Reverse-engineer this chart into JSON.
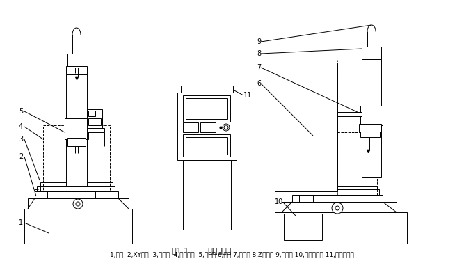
{
  "fig_label": "图1.1",
  "fig_title": "机床外形图",
  "caption": "1,床身  2,XY拖板  3,排水盘  4,工作台面  5,排水罩 6,立柱 7,主轴夹 8,Z轴滑块 9,数控夹 10,工作液系统 11,数控电源箱",
  "bg_color": "#ffffff",
  "line_color": "#000000",
  "font_size_caption": 6.5,
  "font_size_label": 7,
  "font_size_fig": 8
}
